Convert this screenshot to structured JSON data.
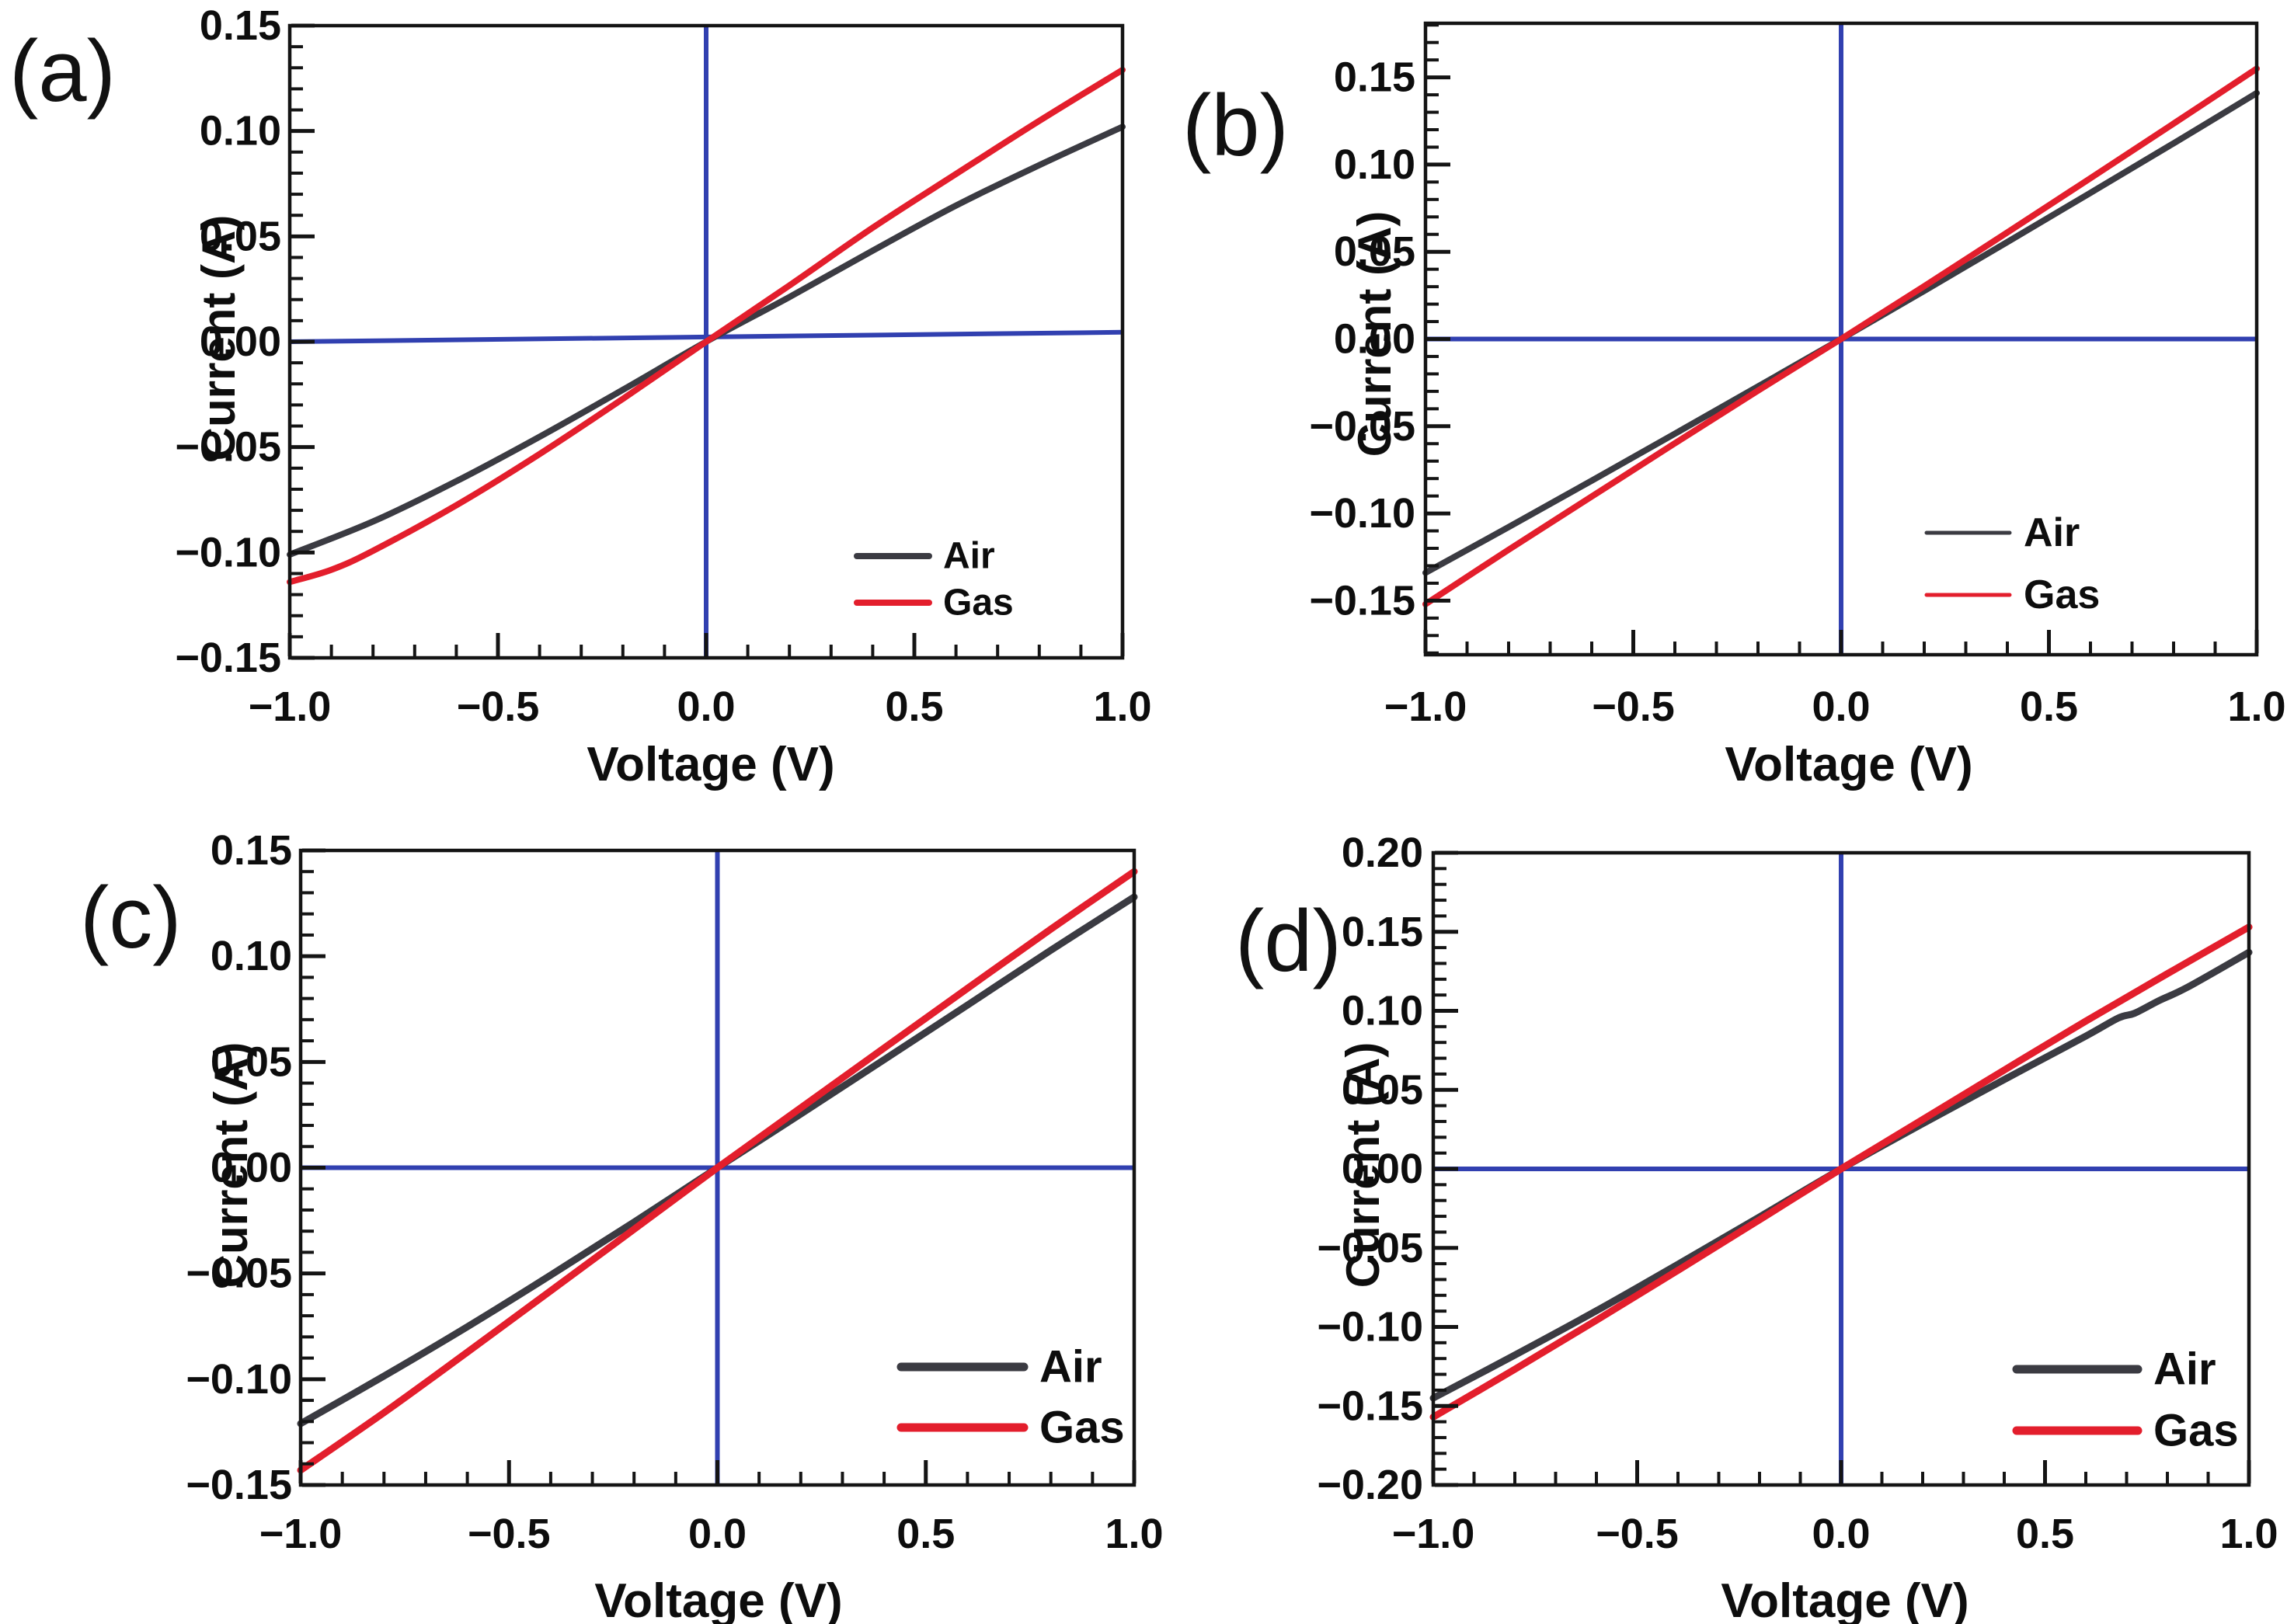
{
  "figure": {
    "background": "#ffffff",
    "description": "Four-panel I-V characteristic curves comparing Air and Gas",
    "colors": {
      "air": "#3b3b42",
      "gas": "#e31e2c",
      "zero_line": "#3140b0",
      "frame": "#141414",
      "text": "#0d0d0d"
    }
  },
  "chart_data": [
    {
      "type": "line",
      "panel_letter": "(a)",
      "title": "",
      "xlabel": "Voltage (V)",
      "ylabel": "Current (A)",
      "xlim": [
        -1.0,
        1.0
      ],
      "ylim": [
        -0.15,
        0.15
      ],
      "x_ticks": [
        -1.0,
        -0.5,
        0.0,
        0.5,
        1.0
      ],
      "x_tick_labels": [
        "−1.0",
        "−0.5",
        "0.0",
        "0.5",
        "1.0"
      ],
      "y_ticks": [
        0.15,
        0.1,
        0.05,
        0.0,
        -0.05,
        -0.1,
        -0.15
      ],
      "y_tick_labels": [
        "0.15",
        "0.10",
        "0.05",
        "0.00",
        "−0.05",
        "−0.10",
        "−0.15"
      ],
      "x_minor_step": 0.1,
      "y_minor_step": 0.01,
      "grid": false,
      "legend_position": "lower right",
      "zero_lines": {
        "horizontal": [
          [
            -1.0,
            0.0
          ],
          [
            1.0,
            0.0045
          ]
        ],
        "vertical_x": 0.0
      },
      "series": [
        {
          "name": "Air",
          "color": "#3b3b42",
          "points": [
            [
              -1,
              -0.101
            ],
            [
              -0.8,
              -0.0853
            ],
            [
              -0.6,
              -0.0662
            ],
            [
              -0.4,
              -0.0451
            ],
            [
              -0.2,
              -0.0228
            ],
            [
              0,
              0
            ],
            [
              0.2,
              0.0212
            ],
            [
              0.4,
              0.0432
            ],
            [
              0.6,
              0.0646
            ],
            [
              0.8,
              0.0838
            ],
            [
              1,
              0.102
            ]
          ]
        },
        {
          "name": "Gas",
          "color": "#e31e2c",
          "points": [
            [
              -1,
              -0.114
            ],
            [
              -0.9,
              -0.1082
            ],
            [
              -0.8,
              -0.0992
            ],
            [
              -0.6,
              -0.0776
            ],
            [
              -0.4,
              -0.0533
            ],
            [
              -0.2,
              -0.0271
            ],
            [
              0,
              0
            ],
            [
              0.2,
              0.0267
            ],
            [
              0.4,
              0.0541
            ],
            [
              0.6,
              0.0796
            ],
            [
              0.8,
              0.1048
            ],
            [
              1,
              0.129
            ]
          ]
        }
      ]
    },
    {
      "type": "line",
      "panel_letter": "(b)",
      "title": "",
      "xlabel": "Voltage (V)",
      "ylabel": "Current (A)",
      "xlim": [
        -1.0,
        1.0
      ],
      "ylim": [
        -0.181,
        0.181
      ],
      "x_ticks": [
        -1.0,
        -0.5,
        0.0,
        0.5,
        1.0
      ],
      "x_tick_labels": [
        "−1.0",
        "−0.5",
        "0.0",
        "0.5",
        "1.0"
      ],
      "y_ticks": [
        0.15,
        0.1,
        0.05,
        0.0,
        -0.05,
        -0.1,
        -0.15
      ],
      "y_tick_labels": [
        "0.15",
        "0.10",
        "0.05",
        "0.00",
        "−0.05",
        "−0.10",
        "−0.15"
      ],
      "x_minor_step": 0.1,
      "y_minor_step": 0.01,
      "grid": false,
      "legend_position": "lower right",
      "zero_lines": {
        "horizontal": [
          [
            -1.0,
            0.0
          ],
          [
            1.0,
            0.0
          ]
        ],
        "vertical_x": 0.0
      },
      "series": [
        {
          "name": "Air",
          "color": "#3b3b42",
          "points": [
            [
              -1,
              -0.134
            ],
            [
              -0.8,
              -0.1078
            ],
            [
              -0.6,
              -0.0812
            ],
            [
              -0.4,
              -0.0543
            ],
            [
              -0.2,
              -0.0272
            ],
            [
              0,
              0
            ],
            [
              0.2,
              0.0276
            ],
            [
              0.4,
              0.0556
            ],
            [
              0.6,
              0.0838
            ],
            [
              0.8,
              0.1122
            ],
            [
              1,
              0.141
            ]
          ]
        },
        {
          "name": "Gas",
          "color": "#e31e2c",
          "points": [
            [
              -1,
              -0.152
            ],
            [
              -0.8,
              -0.1208
            ],
            [
              -0.6,
              -0.0903
            ],
            [
              -0.4,
              -0.0598
            ],
            [
              -0.2,
              -0.0296
            ],
            [
              0,
              0
            ],
            [
              0.2,
              0.0303
            ],
            [
              0.4,
              0.0611
            ],
            [
              0.6,
              0.0922
            ],
            [
              0.8,
              0.1235
            ],
            [
              1,
              0.155
            ]
          ]
        }
      ]
    },
    {
      "type": "line",
      "panel_letter": "(c)",
      "title": "",
      "xlabel": "Voltage (V)",
      "ylabel": "Current (A)",
      "xlim": [
        -1.0,
        1.0
      ],
      "ylim": [
        -0.15,
        0.15
      ],
      "x_ticks": [
        -1.0,
        -0.5,
        0.0,
        0.5,
        1.0
      ],
      "x_tick_labels": [
        "−1.0",
        "−0.5",
        "0.0",
        "0.5",
        "1.0"
      ],
      "y_ticks": [
        0.15,
        0.1,
        0.05,
        0.0,
        -0.05,
        -0.1,
        -0.15
      ],
      "y_tick_labels": [
        "0.15",
        "0.10",
        "0.05",
        "0.00",
        "−0.05",
        "−0.10",
        "−0.15"
      ],
      "x_minor_step": 0.1,
      "y_minor_step": 0.01,
      "grid": false,
      "legend_position": "lower right",
      "zero_lines": {
        "horizontal": [
          [
            -1.0,
            0.0
          ],
          [
            1.0,
            0.0
          ]
        ],
        "vertical_x": 0.0
      },
      "series": [
        {
          "name": "Air",
          "color": "#3b3b42",
          "points": [
            [
              -1,
              -0.121
            ],
            [
              -0.8,
              -0.0985
            ],
            [
              -0.6,
              -0.0752
            ],
            [
              -0.4,
              -0.0508
            ],
            [
              -0.2,
              -0.0257
            ],
            [
              0,
              0
            ],
            [
              0.2,
              0.0254
            ],
            [
              0.4,
              0.0511
            ],
            [
              0.6,
              0.0769
            ],
            [
              0.8,
              0.1028
            ],
            [
              1,
              0.128
            ]
          ]
        },
        {
          "name": "Gas",
          "color": "#e31e2c",
          "points": [
            [
              -1,
              -0.143
            ],
            [
              -0.8,
              -0.1158
            ],
            [
              -0.6,
              -0.0872
            ],
            [
              -0.4,
              -0.0582
            ],
            [
              -0.2,
              -0.0291
            ],
            [
              0,
              0
            ],
            [
              0.2,
              0.0283
            ],
            [
              0.4,
              0.0566
            ],
            [
              0.6,
              0.0848
            ],
            [
              0.8,
              0.1128
            ],
            [
              1,
              0.14
            ]
          ]
        }
      ]
    },
    {
      "type": "line",
      "panel_letter": "(d)",
      "title": "",
      "xlabel": "Voltage (V)",
      "ylabel": "Current (A)",
      "xlim": [
        -1.0,
        1.0
      ],
      "ylim": [
        -0.2,
        0.2
      ],
      "x_ticks": [
        -1.0,
        -0.5,
        0.0,
        0.5,
        1.0
      ],
      "x_tick_labels": [
        "−1.0",
        "−0.5",
        "0.0",
        "0.5",
        "1.0"
      ],
      "y_ticks": [
        0.2,
        0.15,
        0.1,
        0.05,
        0.0,
        -0.05,
        -0.1,
        -0.15,
        -0.2
      ],
      "y_tick_labels": [
        "0.20",
        "0.15",
        "0.10",
        "0.05",
        "0.00",
        "−0.05",
        "−0.10",
        "−0.15",
        "−0.20"
      ],
      "x_minor_step": 0.1,
      "y_minor_step": 0.01,
      "grid": false,
      "legend_position": "lower right",
      "zero_lines": {
        "horizontal": [
          [
            -1.0,
            0.0
          ],
          [
            1.0,
            0.0
          ]
        ],
        "vertical_x": 0.0
      },
      "series": [
        {
          "name": "Air",
          "color": "#3b3b42",
          "points": [
            [
              -1,
              -0.145
            ],
            [
              -0.8,
              -0.1178
            ],
            [
              -0.6,
              -0.0898
            ],
            [
              -0.4,
              -0.0604
            ],
            [
              -0.2,
              -0.0304
            ],
            [
              0,
              0
            ],
            [
              0.2,
              0.0286
            ],
            [
              0.4,
              0.0565
            ],
            [
              0.6,
              0.084
            ],
            [
              0.68,
              0.0955
            ],
            [
              0.72,
              0.0985
            ],
            [
              0.78,
              0.1065
            ],
            [
              0.85,
              0.115
            ],
            [
              1,
              0.137
            ]
          ]
        },
        {
          "name": "Gas",
          "color": "#e31e2c",
          "points": [
            [
              -1,
              -0.157
            ],
            [
              -0.8,
              -0.1268
            ],
            [
              -0.6,
              -0.0958
            ],
            [
              -0.4,
              -0.0642
            ],
            [
              -0.2,
              -0.0322
            ],
            [
              0,
              0
            ],
            [
              0.2,
              0.0312
            ],
            [
              0.4,
              0.0625
            ],
            [
              0.6,
              0.0935
            ],
            [
              0.8,
              0.1235
            ],
            [
              1,
              0.153
            ]
          ]
        }
      ]
    }
  ]
}
